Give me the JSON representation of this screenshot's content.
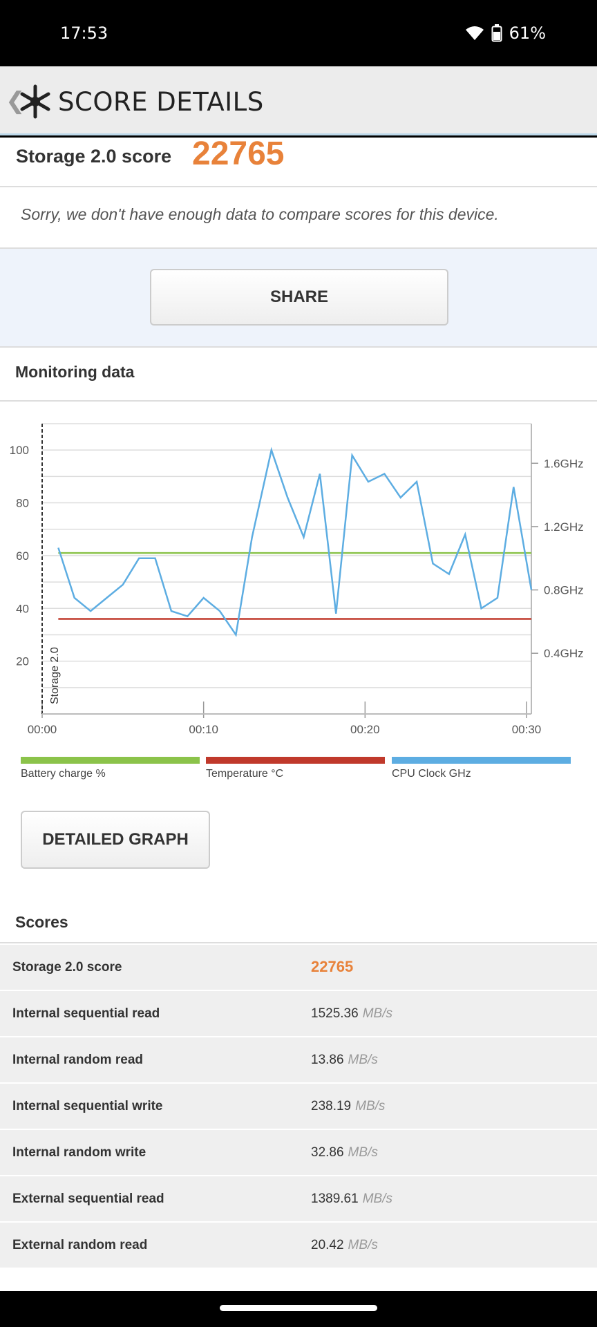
{
  "status": {
    "time": "17:53",
    "battery": "61%"
  },
  "header": {
    "title": "SCORE DETAILS"
  },
  "score_card": {
    "label": "Storage 2.0 score",
    "value": "22765",
    "message": "Sorry, we don't have enough data to compare scores for this device."
  },
  "share_button": "SHARE",
  "monitoring": {
    "title": "Monitoring data",
    "legend": [
      {
        "label": "Battery charge %",
        "color": "#8bc34a"
      },
      {
        "label": "Temperature °C",
        "color": "#c0392b"
      },
      {
        "label": "CPU Clock GHz",
        "color": "#5dade2"
      }
    ],
    "series_label": "Storage 2.0"
  },
  "chart_data": {
    "type": "line",
    "title": "",
    "x_ticks": [
      "00:00",
      "00:10",
      "00:20",
      "00:30"
    ],
    "y_left_ticks": [
      "100",
      "80",
      "60",
      "40",
      "20"
    ],
    "y_right_ticks": [
      "1.6GHz",
      "1.2GHz",
      "0.8GHz",
      "0.4GHz"
    ],
    "ylim": [
      0,
      110
    ],
    "xlim": [
      0,
      30.3
    ],
    "series": [
      {
        "name": "Battery charge %",
        "color": "#8bc34a",
        "x": [
          1,
          30.3
        ],
        "y": [
          61,
          61
        ]
      },
      {
        "name": "Temperature °C",
        "color": "#c0392b",
        "x": [
          1,
          30.3
        ],
        "y": [
          36,
          36
        ]
      },
      {
        "name": "CPU Clock GHz",
        "color": "#5dade2",
        "x": [
          1,
          2,
          3,
          4,
          5,
          6,
          7,
          8,
          9,
          10,
          11,
          12,
          13,
          14.2,
          15.2,
          16.2,
          17.2,
          18.2,
          19.2,
          20.2,
          21.2,
          22.2,
          23.2,
          24.2,
          25.2,
          26.2,
          27.2,
          28.2,
          29.2,
          30.3
        ],
        "y": [
          63,
          44,
          39,
          44,
          49,
          59,
          59,
          39,
          37,
          44,
          39,
          30,
          67,
          100,
          82,
          67,
          91,
          38,
          98,
          88,
          91,
          82,
          88,
          57,
          53,
          68,
          40,
          44,
          86,
          47
        ]
      }
    ]
  },
  "detail_button": "DETAILED GRAPH",
  "scores": {
    "title": "Scores",
    "rows": [
      {
        "label": "Storage 2.0 score",
        "value": "22765",
        "unit": ""
      },
      {
        "label": "Internal sequential read",
        "value": "1525.36",
        "unit": "MB/s"
      },
      {
        "label": "Internal random read",
        "value": "13.86",
        "unit": "MB/s"
      },
      {
        "label": "Internal sequential write",
        "value": "238.19",
        "unit": "MB/s"
      },
      {
        "label": "Internal random write",
        "value": "32.86",
        "unit": "MB/s"
      },
      {
        "label": "External sequential read",
        "value": "1389.61",
        "unit": "MB/s"
      },
      {
        "label": "External random read",
        "value": "20.42",
        "unit": "MB/s"
      }
    ]
  }
}
